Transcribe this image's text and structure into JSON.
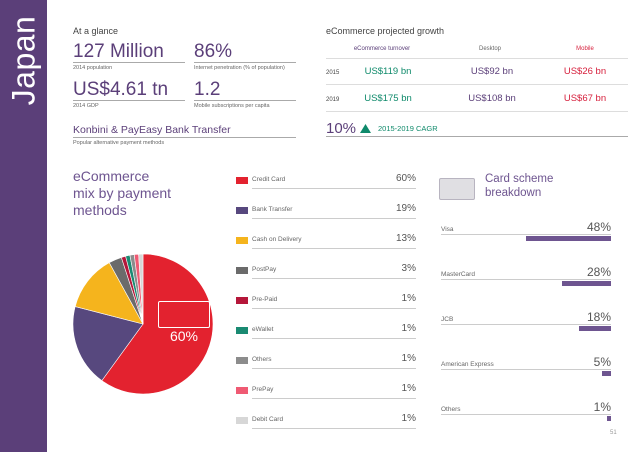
{
  "country": "Japan",
  "glance": {
    "title": "At a glance",
    "stats": [
      {
        "value": "127 Million",
        "label": "2014 population"
      },
      {
        "value": "86%",
        "label": "Internet penetration (% of population)"
      },
      {
        "value": "US$4.61 tn",
        "label": "2014 GDP"
      },
      {
        "value": "1.2",
        "label": "Mobile subscriptions per capita"
      }
    ],
    "payment": {
      "value": "Konbini & PayEasy Bank Transfer",
      "label": "Popular alternative payment methods"
    }
  },
  "growth": {
    "title": "eCommerce projected growth",
    "headers": [
      "eCommerce turnover",
      "Desktop",
      "Mobile"
    ],
    "rows": [
      {
        "year": "2015",
        "turnover": "US$119 bn",
        "desktop": "US$92 bn",
        "mobile": "US$26 bn"
      },
      {
        "year": "2019",
        "turnover": "US$175 bn",
        "desktop": "US$108 bn",
        "mobile": "US$67 bn"
      }
    ],
    "cagr_value": "10%",
    "cagr_label": "2015-2019 CAGR"
  },
  "mix": {
    "title_line1": "eCommerce",
    "title_line2": "mix by payment",
    "title_line3": "methods",
    "highlight": "60%"
  },
  "chart_data": [
    {
      "type": "pie",
      "title": "eCommerce mix by payment methods",
      "categories": [
        "Credit Card",
        "Bank Transfer",
        "Cash on Delivery",
        "PostPay",
        "Pre-Paid",
        "eWallet",
        "Others",
        "PrePay",
        "Debit Card"
      ],
      "values": [
        60,
        19,
        13,
        3,
        1,
        1,
        1,
        1,
        1
      ],
      "labels": [
        "60%",
        "19%",
        "13%",
        "3%",
        "1%",
        "1%",
        "1%",
        "1%",
        "1%"
      ],
      "colors": [
        "#e3222f",
        "#57487e",
        "#f5b41d",
        "#6b6b6b",
        "#b5173a",
        "#1a8a72",
        "#8c8c8c",
        "#ef5a73",
        "#d7d7d7"
      ]
    },
    {
      "type": "bar",
      "title": "Card scheme breakdown",
      "categories": [
        "Visa",
        "MasterCard",
        "JCB",
        "American Express",
        "Others"
      ],
      "values": [
        48,
        28,
        18,
        5,
        1
      ],
      "labels": [
        "48%",
        "28%",
        "18%",
        "5%",
        "1%"
      ],
      "color": "#6e5590"
    }
  ],
  "card_scheme": {
    "title_line1": "Card scheme",
    "title_line2": "breakdown"
  },
  "page_number": "51"
}
